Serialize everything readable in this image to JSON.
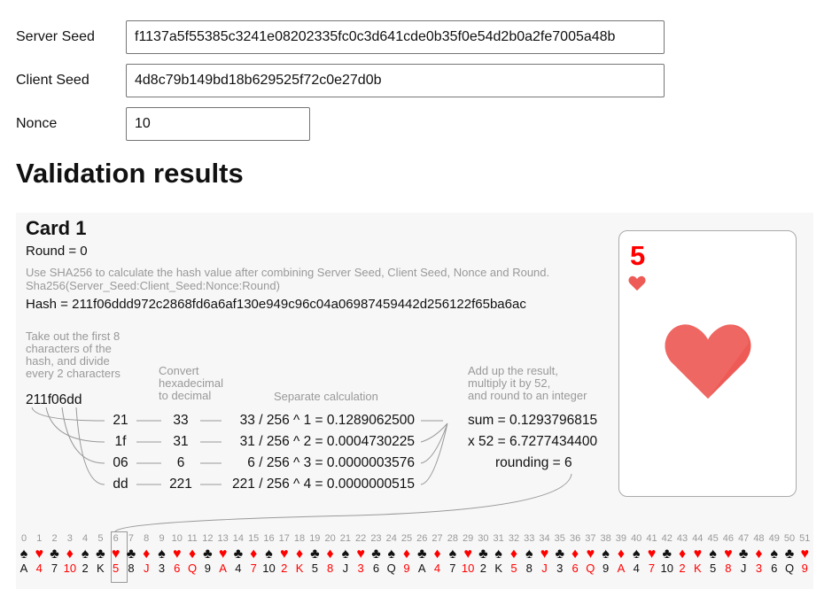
{
  "form": {
    "server_seed_label": "Server Seed",
    "server_seed": "f1137a5f55385c3241e08202335fc0c3d641cde0b35f0e54d2b0a2fe7005a48b",
    "client_seed_label": "Client Seed",
    "client_seed": "4d8c79b149bd18b629525f72c0e27d0b",
    "nonce_label": "Nonce",
    "nonce": "10"
  },
  "results": {
    "title": "Validation results",
    "card": {
      "title": "Card 1",
      "round": "Round = 0",
      "desc1": "Use SHA256 to calculate the hash value after combining Server Seed, Client Seed, Nonce and Round.",
      "desc2": "Sha256(Server_Seed:Client_Seed:Nonce:Round)",
      "hash": "Hash = 211f06ddd972c2868fd6a6af130e949c96c04a06987459442d256122f65ba6ac",
      "step1": [
        "Take out the first 8",
        "characters of the",
        "hash, and divide",
        "every 2 characters"
      ],
      "step2": [
        "Convert",
        "hexadecimal",
        "to decimal"
      ],
      "step3": "Separate calculation",
      "step4": [
        "Add up the result,",
        "multiply it by 52,",
        "and round to an integer"
      ],
      "prefix": "211f06dd",
      "rows": [
        {
          "hex": "21",
          "dec": "33",
          "calc": "33 / 256 ^ 1 = 0.1289062500"
        },
        {
          "hex": "1f",
          "dec": "31",
          "calc": "31 / 256 ^ 2 = 0.0004730225"
        },
        {
          "hex": "06",
          "dec": "6",
          "calc": "6 / 256 ^ 3 = 0.0000003576"
        },
        {
          "hex": "dd",
          "dec": "221",
          "calc": "221 / 256 ^ 4 = 0.0000000515"
        }
      ],
      "sum": "sum = 0.1293796815",
      "mult": "x 52 = 6.7277434400",
      "rounding": "rounding = 6",
      "result_rank": "5",
      "result_suit": "heart",
      "selected_index": 6,
      "red": "#ff0000",
      "heart_color": "#ee5a55"
    },
    "deck": [
      [
        "A",
        "spade"
      ],
      [
        "4",
        "heart"
      ],
      [
        "7",
        "club"
      ],
      [
        "10",
        "diamond"
      ],
      [
        "2",
        "spade"
      ],
      [
        "K",
        "club"
      ],
      [
        "5",
        "heart"
      ],
      [
        "8",
        "club"
      ],
      [
        "J",
        "diamond"
      ],
      [
        "3",
        "spade"
      ],
      [
        "6",
        "heart"
      ],
      [
        "Q",
        "diamond"
      ],
      [
        "9",
        "club"
      ],
      [
        "A",
        "heart"
      ],
      [
        "4",
        "club"
      ],
      [
        "7",
        "diamond"
      ],
      [
        "10",
        "spade"
      ],
      [
        "2",
        "heart"
      ],
      [
        "K",
        "diamond"
      ],
      [
        "5",
        "club"
      ],
      [
        "8",
        "diamond"
      ],
      [
        "J",
        "spade"
      ],
      [
        "3",
        "heart"
      ],
      [
        "6",
        "club"
      ],
      [
        "Q",
        "spade"
      ],
      [
        "9",
        "diamond"
      ],
      [
        "A",
        "club"
      ],
      [
        "4",
        "diamond"
      ],
      [
        "7",
        "spade"
      ],
      [
        "10",
        "heart"
      ],
      [
        "2",
        "club"
      ],
      [
        "K",
        "spade"
      ],
      [
        "5",
        "diamond"
      ],
      [
        "8",
        "spade"
      ],
      [
        "J",
        "heart"
      ],
      [
        "3",
        "club"
      ],
      [
        "6",
        "diamond"
      ],
      [
        "Q",
        "heart"
      ],
      [
        "9",
        "spade"
      ],
      [
        "A",
        "diamond"
      ],
      [
        "4",
        "spade"
      ],
      [
        "7",
        "heart"
      ],
      [
        "10",
        "club"
      ],
      [
        "2",
        "diamond"
      ],
      [
        "K",
        "heart"
      ],
      [
        "5",
        "spade"
      ],
      [
        "8",
        "heart"
      ],
      [
        "J",
        "club"
      ],
      [
        "3",
        "diamond"
      ],
      [
        "6",
        "spade"
      ],
      [
        "Q",
        "club"
      ],
      [
        "9",
        "heart"
      ]
    ]
  }
}
